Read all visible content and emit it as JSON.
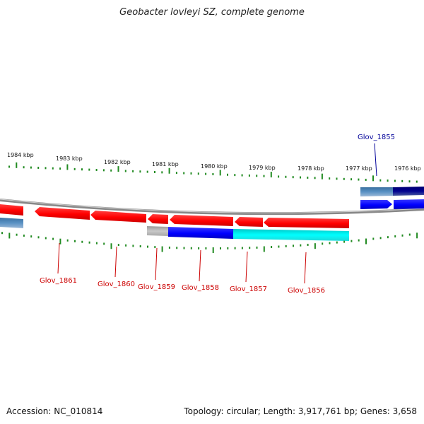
{
  "header": {
    "title": "Geobacter lovleyi SZ, complete genome"
  },
  "footer": {
    "accession": "Accession: NC_010814",
    "summary": "Topology: circular; Length: 3,917,761 bp; Genes: 3,658"
  },
  "ruler": {
    "labels": [
      "1984 kbp",
      "1983 kbp",
      "1982 kbp",
      "1981 kbp",
      "1980 kbp",
      "1979 kbp",
      "1978 kbp",
      "1977 kbp",
      "1976 kbp"
    ]
  },
  "genes": [
    {
      "label": "Glov_1861",
      "color": "#cc0000"
    },
    {
      "label": "Glov_1860",
      "color": "#cc0000"
    },
    {
      "label": "Glov_1859",
      "color": "#cc0000"
    },
    {
      "label": "Glov_1858",
      "color": "#cc0000"
    },
    {
      "label": "Glov_1857",
      "color": "#cc0000"
    },
    {
      "label": "Glov_1856",
      "color": "#cc0000"
    },
    {
      "label": "Glov_1855",
      "color": "#000099"
    }
  ],
  "colors": {
    "forward_gene": "#ff0000",
    "reverse_gene": "#0000ff",
    "tick": "#228b22",
    "backbone": "#7a7a7a",
    "cyan_feature": "#00e5e5",
    "gray_feature": "#b0b0b0",
    "steel_feature": "#4682b4",
    "navy_feature": "#000080"
  }
}
